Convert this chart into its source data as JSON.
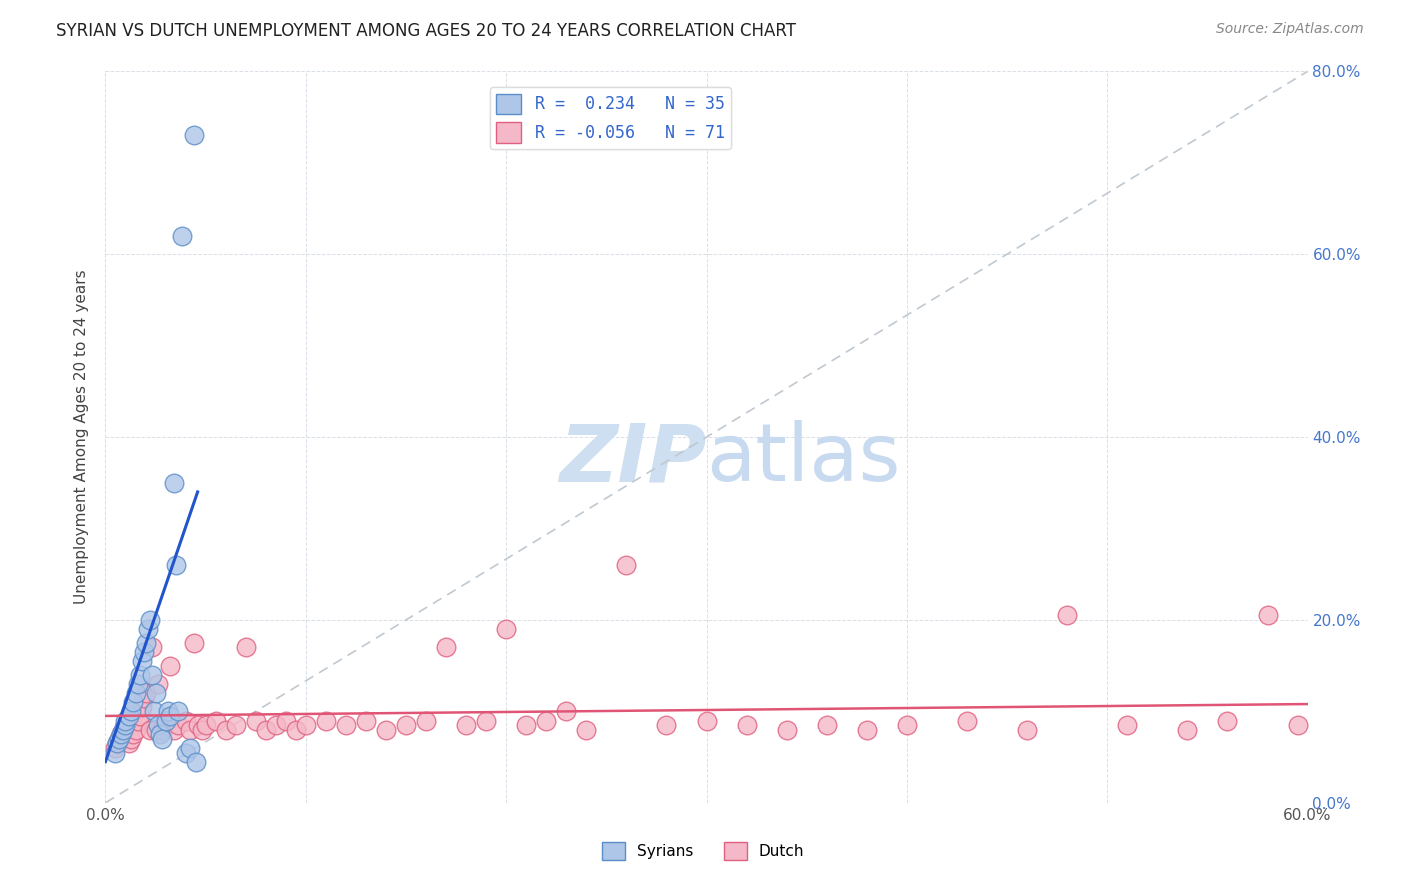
{
  "title": "SYRIAN VS DUTCH UNEMPLOYMENT AMONG AGES 20 TO 24 YEARS CORRELATION CHART",
  "source": "Source: ZipAtlas.com",
  "ylabel": "Unemployment Among Ages 20 to 24 years",
  "xlim": [
    0.0,
    0.6
  ],
  "ylim": [
    0.0,
    0.8
  ],
  "xticks": [
    0.0,
    0.1,
    0.2,
    0.3,
    0.4,
    0.5,
    0.6
  ],
  "yticks": [
    0.0,
    0.2,
    0.4,
    0.6,
    0.8
  ],
  "syrian_color": "#aec6e8",
  "dutch_color": "#f5b8c8",
  "syrian_edge": "#5b8dc8",
  "dutch_edge": "#e06080",
  "trend_blue": "#2255cc",
  "trend_pink": "#e05575",
  "diagonal_color": "#c0c8d0",
  "watermark_color": "#cddff0",
  "legend_r1": "R =  0.234",
  "legend_n1": "N = 35",
  "legend_r2": "R = -0.056",
  "legend_n2": "N = 71",
  "legend_color": "#3366cc",
  "right_axis_color": "#4477cc",
  "syrian_x": [
    0.005,
    0.006,
    0.007,
    0.008,
    0.009,
    0.01,
    0.01,
    0.012,
    0.013,
    0.014,
    0.015,
    0.016,
    0.017,
    0.018,
    0.019,
    0.02,
    0.021,
    0.022,
    0.023,
    0.024,
    0.025,
    0.026,
    0.027,
    0.028,
    0.03,
    0.031,
    0.032,
    0.034,
    0.035,
    0.036,
    0.038,
    0.04,
    0.042,
    0.044,
    0.045
  ],
  "syrian_y": [
    0.055,
    0.065,
    0.07,
    0.075,
    0.08,
    0.085,
    0.09,
    0.095,
    0.1,
    0.11,
    0.12,
    0.13,
    0.14,
    0.155,
    0.165,
    0.175,
    0.19,
    0.2,
    0.14,
    0.1,
    0.12,
    0.085,
    0.075,
    0.07,
    0.09,
    0.1,
    0.095,
    0.35,
    0.26,
    0.1,
    0.62,
    0.055,
    0.06,
    0.73,
    0.045
  ],
  "dutch_x": [
    0.005,
    0.006,
    0.007,
    0.008,
    0.009,
    0.01,
    0.011,
    0.012,
    0.013,
    0.014,
    0.015,
    0.016,
    0.017,
    0.018,
    0.019,
    0.02,
    0.022,
    0.023,
    0.025,
    0.026,
    0.028,
    0.03,
    0.032,
    0.034,
    0.036,
    0.04,
    0.042,
    0.044,
    0.046,
    0.048,
    0.05,
    0.055,
    0.06,
    0.065,
    0.07,
    0.075,
    0.08,
    0.085,
    0.09,
    0.095,
    0.1,
    0.11,
    0.12,
    0.13,
    0.14,
    0.15,
    0.16,
    0.17,
    0.18,
    0.19,
    0.2,
    0.21,
    0.22,
    0.23,
    0.24,
    0.26,
    0.28,
    0.3,
    0.32,
    0.34,
    0.36,
    0.38,
    0.4,
    0.43,
    0.46,
    0.48,
    0.51,
    0.54,
    0.56,
    0.58,
    0.595
  ],
  "dutch_y": [
    0.06,
    0.065,
    0.07,
    0.075,
    0.08,
    0.085,
    0.09,
    0.065,
    0.07,
    0.075,
    0.08,
    0.09,
    0.095,
    0.105,
    0.115,
    0.12,
    0.08,
    0.17,
    0.08,
    0.13,
    0.08,
    0.09,
    0.15,
    0.08,
    0.085,
    0.09,
    0.08,
    0.175,
    0.085,
    0.08,
    0.085,
    0.09,
    0.08,
    0.085,
    0.17,
    0.09,
    0.08,
    0.085,
    0.09,
    0.08,
    0.085,
    0.09,
    0.085,
    0.09,
    0.08,
    0.085,
    0.09,
    0.17,
    0.085,
    0.09,
    0.19,
    0.085,
    0.09,
    0.1,
    0.08,
    0.26,
    0.085,
    0.09,
    0.085,
    0.08,
    0.085,
    0.08,
    0.085,
    0.09,
    0.08,
    0.205,
    0.085,
    0.08,
    0.09,
    0.205,
    0.085
  ],
  "blue_trend_x0": 0.0,
  "blue_trend_y0": 0.045,
  "blue_trend_x1": 0.046,
  "blue_trend_y1": 0.34,
  "pink_trend_x0": 0.0,
  "pink_trend_y0": 0.095,
  "pink_trend_x1": 0.6,
  "pink_trend_y1": 0.108
}
